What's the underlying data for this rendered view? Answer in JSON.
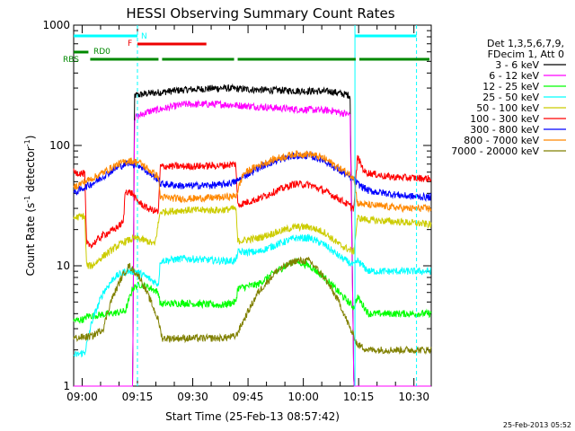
{
  "chart_data": {
    "type": "line",
    "title": "HESSI Observing Summary Count Rates",
    "xlabel": "Start Time (25-Feb-13 08:57:42)",
    "ylabel_main": "Count Rate (s",
    "ylabel_exp1": "-1",
    "ylabel_mid": " detector",
    "ylabel_exp2": "-1",
    "ylabel_end": ")",
    "x_range_min": [
      0,
      97
    ],
    "y_scale": "log",
    "y_range": [
      1,
      1000
    ],
    "x_ticks": [
      {
        "t": 2.3,
        "label": "09:00"
      },
      {
        "t": 17.3,
        "label": "09:15"
      },
      {
        "t": 32.3,
        "label": "09:30"
      },
      {
        "t": 47.3,
        "label": "09:45"
      },
      {
        "t": 62.3,
        "label": "10:00"
      },
      {
        "t": 77.3,
        "label": "10:15"
      },
      {
        "t": 92.3,
        "label": "10:30"
      }
    ],
    "y_ticks": [
      {
        "v": 1,
        "label": "1"
      },
      {
        "v": 10,
        "label": "10"
      },
      {
        "v": 100,
        "label": "100"
      },
      {
        "v": 1000,
        "label": "1000"
      }
    ],
    "legend": {
      "header": [
        "Det 1,3,5,6,7,9,",
        "FDecim 1, Att 0"
      ],
      "placement": "right"
    },
    "series": [
      {
        "name": "3 - 6 keV",
        "color": "#000000",
        "points": [
          [
            0,
            1
          ],
          [
            16,
            1
          ],
          [
            16.5,
            260
          ],
          [
            20,
            270
          ],
          [
            30,
            290
          ],
          [
            40,
            300
          ],
          [
            50,
            290
          ],
          [
            60,
            285
          ],
          [
            70,
            280
          ],
          [
            75,
            260
          ],
          [
            76,
            1
          ],
          [
            97,
            1
          ]
        ]
      },
      {
        "name": "6 - 12 keV",
        "color": "#ff00ff",
        "points": [
          [
            0,
            1
          ],
          [
            16,
            1
          ],
          [
            16.5,
            170
          ],
          [
            20,
            190
          ],
          [
            30,
            220
          ],
          [
            40,
            220
          ],
          [
            50,
            210
          ],
          [
            60,
            200
          ],
          [
            70,
            195
          ],
          [
            75,
            180
          ],
          [
            76,
            1
          ],
          [
            97,
            1
          ]
        ]
      },
      {
        "name": "12 - 25 keV",
        "color": "#00ff00",
        "points": [
          [
            0,
            3.5
          ],
          [
            3,
            3.6
          ],
          [
            3.5,
            3.8
          ],
          [
            10,
            4.0
          ],
          [
            14,
            4.2
          ],
          [
            16,
            6.5
          ],
          [
            18,
            7.0
          ],
          [
            21,
            6.5
          ],
          [
            23,
            6.0
          ],
          [
            23.5,
            4.8
          ],
          [
            30,
            4.9
          ],
          [
            40,
            4.7
          ],
          [
            44,
            5.0
          ],
          [
            44.5,
            6.5
          ],
          [
            50,
            7.0
          ],
          [
            55,
            9.0
          ],
          [
            60,
            11
          ],
          [
            64,
            10
          ],
          [
            68,
            8
          ],
          [
            72,
            6
          ],
          [
            76,
            4.5
          ],
          [
            77,
            5.5
          ],
          [
            80,
            4.0
          ],
          [
            90,
            4.0
          ],
          [
            97,
            4.0
          ]
        ]
      },
      {
        "name": "25 - 50 keV",
        "color": "#00ffff",
        "points": [
          [
            0,
            1.8
          ],
          [
            3,
            1.9
          ],
          [
            5,
            3.5
          ],
          [
            8,
            6
          ],
          [
            11,
            8
          ],
          [
            14,
            9
          ],
          [
            17,
            9
          ],
          [
            20,
            8
          ],
          [
            23,
            7
          ],
          [
            23.5,
            11
          ],
          [
            30,
            11.5
          ],
          [
            40,
            11
          ],
          [
            44,
            11
          ],
          [
            44.5,
            13
          ],
          [
            50,
            13
          ],
          [
            55,
            15
          ],
          [
            60,
            17
          ],
          [
            64,
            17
          ],
          [
            68,
            15
          ],
          [
            72,
            12
          ],
          [
            76,
            10
          ],
          [
            77,
            11
          ],
          [
            80,
            9
          ],
          [
            90,
            9
          ],
          [
            97,
            9
          ]
        ]
      },
      {
        "name": "50 - 100 keV",
        "color": "#cccc00",
        "points": [
          [
            0,
            25
          ],
          [
            3,
            26
          ],
          [
            3.5,
            10
          ],
          [
            5,
            10
          ],
          [
            8,
            12
          ],
          [
            11,
            14
          ],
          [
            14,
            16
          ],
          [
            17,
            17
          ],
          [
            20,
            16
          ],
          [
            22,
            15
          ],
          [
            23.5,
            28
          ],
          [
            30,
            29
          ],
          [
            40,
            29
          ],
          [
            44,
            30
          ],
          [
            44.5,
            16
          ],
          [
            50,
            17
          ],
          [
            55,
            19
          ],
          [
            60,
            21
          ],
          [
            64,
            21
          ],
          [
            68,
            19
          ],
          [
            72,
            15
          ],
          [
            76,
            13
          ],
          [
            77,
            25
          ],
          [
            80,
            24
          ],
          [
            90,
            23
          ],
          [
            97,
            22
          ]
        ]
      },
      {
        "name": "100 - 300 keV",
        "color": "#ff0000",
        "points": [
          [
            0,
            60
          ],
          [
            3,
            58
          ],
          [
            3.5,
            15
          ],
          [
            5,
            15
          ],
          [
            8,
            18
          ],
          [
            11,
            20
          ],
          [
            13.5,
            23
          ],
          [
            14,
            42
          ],
          [
            16,
            40
          ],
          [
            17,
            35
          ],
          [
            20,
            30
          ],
          [
            23,
            28
          ],
          [
            23.5,
            67
          ],
          [
            30,
            67
          ],
          [
            40,
            68
          ],
          [
            44,
            70
          ],
          [
            44.5,
            32
          ],
          [
            50,
            36
          ],
          [
            55,
            42
          ],
          [
            60,
            48
          ],
          [
            64,
            47
          ],
          [
            68,
            42
          ],
          [
            72,
            36
          ],
          [
            76,
            30
          ],
          [
            77,
            80
          ],
          [
            79,
            60
          ],
          [
            85,
            55
          ],
          [
            90,
            54
          ],
          [
            97,
            53
          ]
        ]
      },
      {
        "name": "300 - 800 keV",
        "color": "#0000ff",
        "points": [
          [
            0,
            40
          ],
          [
            3,
            45
          ],
          [
            6,
            50
          ],
          [
            9,
            58
          ],
          [
            12,
            66
          ],
          [
            15,
            72
          ],
          [
            18,
            68
          ],
          [
            20,
            60
          ],
          [
            23,
            52
          ],
          [
            23.5,
            48
          ],
          [
            30,
            46
          ],
          [
            40,
            47
          ],
          [
            44,
            50
          ],
          [
            46,
            55
          ],
          [
            50,
            65
          ],
          [
            55,
            75
          ],
          [
            60,
            82
          ],
          [
            64,
            82
          ],
          [
            68,
            75
          ],
          [
            72,
            62
          ],
          [
            76,
            52
          ],
          [
            77,
            48
          ],
          [
            80,
            42
          ],
          [
            90,
            38
          ],
          [
            97,
            37
          ]
        ]
      },
      {
        "name": "800 - 7000 keV",
        "color": "#ff8800",
        "points": [
          [
            0,
            45
          ],
          [
            3,
            50
          ],
          [
            6,
            55
          ],
          [
            9,
            62
          ],
          [
            12,
            70
          ],
          [
            15,
            75
          ],
          [
            18,
            72
          ],
          [
            20,
            64
          ],
          [
            23,
            55
          ],
          [
            23.5,
            37
          ],
          [
            30,
            36
          ],
          [
            40,
            37
          ],
          [
            44,
            38
          ],
          [
            46,
            58
          ],
          [
            50,
            68
          ],
          [
            55,
            78
          ],
          [
            60,
            85
          ],
          [
            64,
            85
          ],
          [
            68,
            78
          ],
          [
            72,
            65
          ],
          [
            76,
            55
          ],
          [
            77,
            33
          ],
          [
            80,
            32
          ],
          [
            90,
            30
          ],
          [
            97,
            30
          ]
        ]
      },
      {
        "name": "7000 - 20000 keV",
        "color": "#808000",
        "points": [
          [
            0,
            2.5
          ],
          [
            5,
            2.6
          ],
          [
            8,
            3.0
          ],
          [
            10,
            5
          ],
          [
            13,
            8
          ],
          [
            15,
            10
          ],
          [
            18,
            8
          ],
          [
            21,
            5
          ],
          [
            23,
            3.5
          ],
          [
            24,
            2.5
          ],
          [
            30,
            2.5
          ],
          [
            40,
            2.5
          ],
          [
            44,
            2.6
          ],
          [
            47,
            4
          ],
          [
            50,
            6
          ],
          [
            55,
            9
          ],
          [
            60,
            11
          ],
          [
            64,
            11
          ],
          [
            68,
            8
          ],
          [
            72,
            5
          ],
          [
            75,
            3
          ],
          [
            77,
            2.2
          ],
          [
            80,
            2.0
          ],
          [
            90,
            2.0
          ],
          [
            97,
            2.0
          ]
        ]
      }
    ],
    "vlines": [
      {
        "t": 17.3,
        "style": "dashed"
      },
      {
        "t": 76.3,
        "style": "solid"
      },
      {
        "t": 93.0,
        "style": "dashed"
      }
    ],
    "annotation_bars": [
      {
        "label": "N",
        "color": "#00ffff",
        "segments": [
          [
            0,
            17.3
          ],
          [
            76.3,
            93.0
          ]
        ]
      },
      {
        "label": "F",
        "color": "#ee0000",
        "segments": [
          [
            17.3,
            36.0
          ]
        ]
      },
      {
        "label": "RD0",
        "color": "#008800",
        "segments": [
          [
            0,
            4
          ]
        ]
      },
      {
        "label": "RBS",
        "color": "#008800",
        "segments": [
          [
            4,
            23.5
          ],
          [
            23.5,
            44
          ],
          [
            44,
            77
          ],
          [
            77,
            97
          ]
        ]
      }
    ]
  },
  "footer": {
    "datestamp": "25-Feb-2013 05:52"
  }
}
